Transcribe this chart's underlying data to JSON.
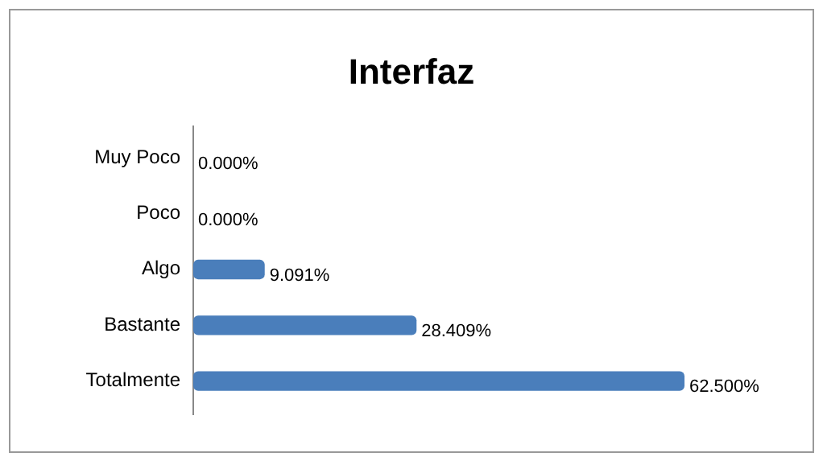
{
  "chart_data": {
    "type": "bar",
    "title": "Interfaz",
    "orientation": "horizontal",
    "categories": [
      "Muy Poco",
      "Poco",
      "Algo",
      "Bastante",
      "Totalmente"
    ],
    "values": [
      0,
      0,
      9.091,
      28.409,
      62.5
    ],
    "value_labels": [
      "0.000%",
      "0.000%",
      "9.091%",
      "28.409%",
      "62.500%"
    ],
    "color": "#4a7ebb"
  }
}
